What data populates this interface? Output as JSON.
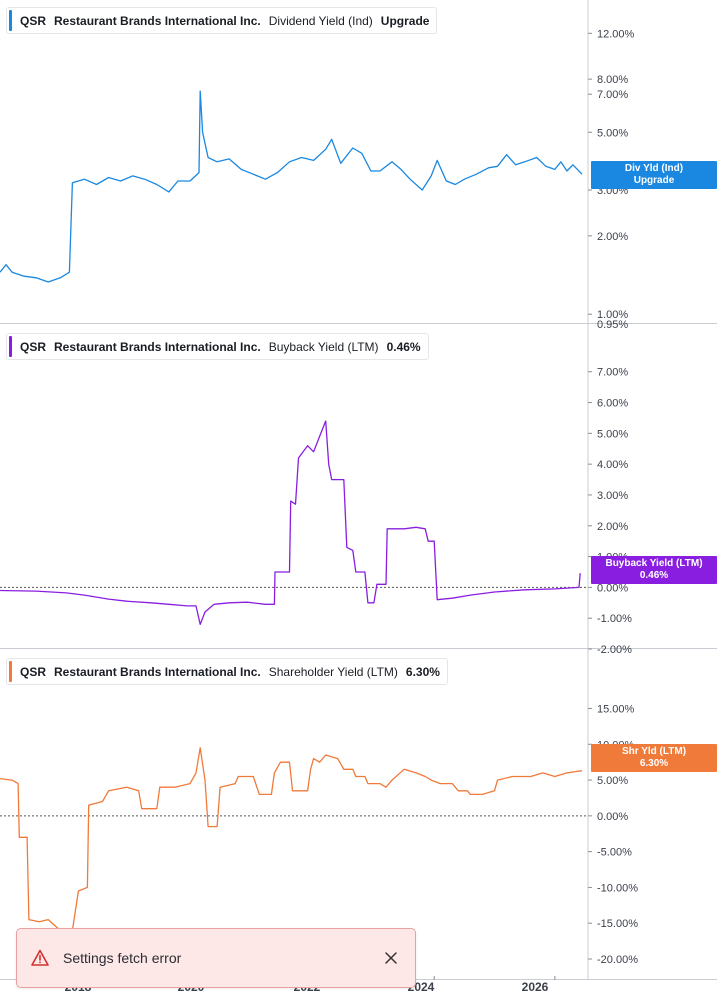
{
  "chart_data": [
    {
      "type": "line",
      "ticker": "QSR",
      "company": "Restaurant Brands International Inc.",
      "metric": "Dividend Yield (Ind)",
      "legend_value": "Upgrade",
      "flag": [
        "Div Yld (Ind)",
        "Upgrade"
      ],
      "color": "#1a88e0",
      "y_scale": "log",
      "ylim": [
        0.95,
        13.5
      ],
      "y_ticks": [
        {
          "v": 12.0,
          "label": "12.00%"
        },
        {
          "v": 8.0,
          "label": "8.00%"
        },
        {
          "v": 7.0,
          "label": "7.00%"
        },
        {
          "v": 5.0,
          "label": "5.00%"
        },
        {
          "v": 3.0,
          "label": "3.00%"
        },
        {
          "v": 2.0,
          "label": "2.00%"
        },
        {
          "v": 1.0,
          "label": "1.00%"
        }
      ],
      "x_domain": [
        2016.8,
        2026.55
      ],
      "series": [
        {
          "values": [
            [
              2016.8,
              1.45
            ],
            [
              2016.9,
              1.55
            ],
            [
              2017.0,
              1.45
            ],
            [
              2017.2,
              1.4
            ],
            [
              2017.4,
              1.38
            ],
            [
              2017.6,
              1.33
            ],
            [
              2017.8,
              1.38
            ],
            [
              2017.95,
              1.45
            ],
            [
              2018.0,
              3.2
            ],
            [
              2018.2,
              3.3
            ],
            [
              2018.4,
              3.15
            ],
            [
              2018.6,
              3.35
            ],
            [
              2018.8,
              3.25
            ],
            [
              2019.0,
              3.4
            ],
            [
              2019.2,
              3.3
            ],
            [
              2019.4,
              3.15
            ],
            [
              2019.6,
              2.95
            ],
            [
              2019.75,
              3.25
            ],
            [
              2019.95,
              3.25
            ],
            [
              2020.1,
              3.5
            ],
            [
              2020.12,
              7.2
            ],
            [
              2020.16,
              5.0
            ],
            [
              2020.25,
              4.0
            ],
            [
              2020.4,
              3.85
            ],
            [
              2020.6,
              3.95
            ],
            [
              2020.8,
              3.6
            ],
            [
              2021.0,
              3.45
            ],
            [
              2021.2,
              3.3
            ],
            [
              2021.4,
              3.5
            ],
            [
              2021.6,
              3.85
            ],
            [
              2021.8,
              4.0
            ],
            [
              2022.0,
              3.9
            ],
            [
              2022.2,
              4.3
            ],
            [
              2022.3,
              4.7
            ],
            [
              2022.45,
              3.8
            ],
            [
              2022.65,
              4.35
            ],
            [
              2022.8,
              4.15
            ],
            [
              2022.95,
              3.55
            ],
            [
              2023.1,
              3.55
            ],
            [
              2023.3,
              3.85
            ],
            [
              2023.45,
              3.6
            ],
            [
              2023.6,
              3.3
            ],
            [
              2023.8,
              3.0
            ],
            [
              2023.95,
              3.4
            ],
            [
              2024.05,
              3.9
            ],
            [
              2024.2,
              3.25
            ],
            [
              2024.35,
              3.15
            ],
            [
              2024.5,
              3.3
            ],
            [
              2024.7,
              3.45
            ],
            [
              2024.9,
              3.65
            ],
            [
              2025.05,
              3.7
            ],
            [
              2025.2,
              4.1
            ],
            [
              2025.35,
              3.75
            ],
            [
              2025.5,
              3.85
            ],
            [
              2025.7,
              4.0
            ],
            [
              2025.85,
              3.7
            ],
            [
              2026.0,
              3.6
            ],
            [
              2026.1,
              3.85
            ],
            [
              2026.2,
              3.55
            ],
            [
              2026.3,
              3.75
            ],
            [
              2026.45,
              3.45
            ]
          ]
        }
      ]
    },
    {
      "type": "line",
      "ticker": "QSR",
      "company": "Restaurant Brands International Inc.",
      "metric": "Buyback Yield (LTM)",
      "legend_value": "0.46%",
      "flag": [
        "Buyback Yield (LTM)",
        "0.46%"
      ],
      "color": "#8a1ee0",
      "ylim": [
        -2.0,
        7.9
      ],
      "y_ticks": [
        {
          "v": 7.0,
          "label": "7.00%"
        },
        {
          "v": 6.0,
          "label": "6.00%"
        },
        {
          "v": 5.0,
          "label": "5.00%"
        },
        {
          "v": 4.0,
          "label": "4.00%"
        },
        {
          "v": 3.0,
          "label": "3.00%"
        },
        {
          "v": 2.0,
          "label": "2.00%"
        },
        {
          "v": 1.0,
          "label": "1.00%"
        },
        {
          "v": 0.0,
          "label": "0.00%"
        },
        {
          "v": -1.0,
          "label": "-1.00%"
        },
        {
          "v": -2.0,
          "label": "-2.00%"
        }
      ],
      "top_label": "0.95%",
      "x_domain": [
        2016.8,
        2026.55
      ],
      "series": [
        {
          "values": [
            [
              2016.8,
              -0.1
            ],
            [
              2017.4,
              -0.12
            ],
            [
              2017.9,
              -0.18
            ],
            [
              2018.2,
              -0.25
            ],
            [
              2018.6,
              -0.38
            ],
            [
              2018.9,
              -0.45
            ],
            [
              2019.3,
              -0.5
            ],
            [
              2019.6,
              -0.55
            ],
            [
              2019.9,
              -0.6
            ],
            [
              2020.05,
              -0.6
            ],
            [
              2020.12,
              -1.2
            ],
            [
              2020.2,
              -0.8
            ],
            [
              2020.35,
              -0.55
            ],
            [
              2020.6,
              -0.5
            ],
            [
              2020.9,
              -0.48
            ],
            [
              2021.2,
              -0.55
            ],
            [
              2021.35,
              -0.55
            ],
            [
              2021.36,
              0.5
            ],
            [
              2021.6,
              0.5
            ],
            [
              2021.62,
              2.8
            ],
            [
              2021.7,
              2.7
            ],
            [
              2021.75,
              4.2
            ],
            [
              2021.9,
              4.6
            ],
            [
              2022.0,
              4.4
            ],
            [
              2022.1,
              4.9
            ],
            [
              2022.2,
              5.4
            ],
            [
              2022.25,
              4.0
            ],
            [
              2022.3,
              3.5
            ],
            [
              2022.5,
              3.5
            ],
            [
              2022.55,
              1.3
            ],
            [
              2022.65,
              1.2
            ],
            [
              2022.7,
              0.5
            ],
            [
              2022.85,
              0.5
            ],
            [
              2022.9,
              -0.5
            ],
            [
              2023.0,
              -0.5
            ],
            [
              2023.05,
              0.1
            ],
            [
              2023.2,
              0.1
            ],
            [
              2023.22,
              1.9
            ],
            [
              2023.5,
              1.9
            ],
            [
              2023.7,
              1.95
            ],
            [
              2023.85,
              1.9
            ],
            [
              2023.9,
              1.5
            ],
            [
              2024.0,
              1.5
            ],
            [
              2024.05,
              -0.4
            ],
            [
              2024.3,
              -0.35
            ],
            [
              2024.6,
              -0.25
            ],
            [
              2025.0,
              -0.15
            ],
            [
              2025.5,
              -0.08
            ],
            [
              2026.0,
              -0.05
            ],
            [
              2026.4,
              0.0
            ],
            [
              2026.42,
              0.46
            ]
          ]
        }
      ]
    },
    {
      "type": "line",
      "ticker": "QSR",
      "company": "Restaurant Brands International Inc.",
      "metric": "Shareholder Yield (LTM)",
      "legend_value": "6.30%",
      "flag": [
        "Shr Yld (LTM)",
        "6.30%"
      ],
      "color": "#f07a3a",
      "ylim": [
        -20.0,
        18.0
      ],
      "y_ticks": [
        {
          "v": 15.0,
          "label": "15.00%"
        },
        {
          "v": 10.0,
          "label": "10.00%"
        },
        {
          "v": 5.0,
          "label": "5.00%"
        },
        {
          "v": 0.0,
          "label": "0.00%"
        },
        {
          "v": -5.0,
          "label": "-5.00%"
        },
        {
          "v": -10.0,
          "label": "-10.00%"
        },
        {
          "v": -15.0,
          "label": "-15.00%"
        },
        {
          "v": -20.0,
          "label": "-20.00%"
        }
      ],
      "x_domain": [
        2016.8,
        2026.55
      ],
      "series": [
        {
          "values": [
            [
              2016.8,
              5.2
            ],
            [
              2017.0,
              5.0
            ],
            [
              2017.1,
              4.5
            ],
            [
              2017.12,
              -3.0
            ],
            [
              2017.25,
              -3.0
            ],
            [
              2017.28,
              -14.5
            ],
            [
              2017.45,
              -14.8
            ],
            [
              2017.6,
              -14.5
            ],
            [
              2017.8,
              -16.0
            ],
            [
              2017.95,
              -18.5
            ],
            [
              2018.0,
              -16.0
            ],
            [
              2018.1,
              -10.5
            ],
            [
              2018.25,
              -10.0
            ],
            [
              2018.27,
              1.5
            ],
            [
              2018.5,
              2.0
            ],
            [
              2018.6,
              3.5
            ],
            [
              2018.9,
              4.0
            ],
            [
              2019.1,
              3.5
            ],
            [
              2019.15,
              1.0
            ],
            [
              2019.4,
              1.0
            ],
            [
              2019.45,
              4.0
            ],
            [
              2019.7,
              4.0
            ],
            [
              2019.95,
              4.5
            ],
            [
              2020.05,
              6.0
            ],
            [
              2020.12,
              9.5
            ],
            [
              2020.2,
              5.0
            ],
            [
              2020.25,
              -1.5
            ],
            [
              2020.4,
              -1.5
            ],
            [
              2020.45,
              4.0
            ],
            [
              2020.7,
              4.5
            ],
            [
              2020.75,
              5.5
            ],
            [
              2021.0,
              5.5
            ],
            [
              2021.1,
              3.0
            ],
            [
              2021.3,
              3.0
            ],
            [
              2021.35,
              6.0
            ],
            [
              2021.45,
              7.5
            ],
            [
              2021.6,
              7.5
            ],
            [
              2021.65,
              3.5
            ],
            [
              2021.9,
              3.5
            ],
            [
              2021.95,
              6.5
            ],
            [
              2022.0,
              8.0
            ],
            [
              2022.1,
              7.5
            ],
            [
              2022.2,
              8.5
            ],
            [
              2022.4,
              8.0
            ],
            [
              2022.5,
              6.5
            ],
            [
              2022.65,
              6.5
            ],
            [
              2022.7,
              5.5
            ],
            [
              2022.85,
              5.5
            ],
            [
              2022.9,
              4.5
            ],
            [
              2023.1,
              4.5
            ],
            [
              2023.2,
              4.0
            ],
            [
              2023.3,
              5.0
            ],
            [
              2023.5,
              6.5
            ],
            [
              2023.7,
              6.0
            ],
            [
              2023.85,
              5.5
            ],
            [
              2023.95,
              5.0
            ],
            [
              2024.1,
              4.5
            ],
            [
              2024.3,
              4.5
            ],
            [
              2024.4,
              3.5
            ],
            [
              2024.55,
              3.5
            ],
            [
              2024.6,
              3.0
            ],
            [
              2024.8,
              3.0
            ],
            [
              2025.0,
              3.5
            ],
            [
              2025.05,
              5.0
            ],
            [
              2025.3,
              5.5
            ],
            [
              2025.6,
              5.5
            ],
            [
              2025.8,
              6.0
            ],
            [
              2026.0,
              5.5
            ],
            [
              2026.2,
              6.0
            ],
            [
              2026.45,
              6.3
            ]
          ]
        }
      ]
    }
  ],
  "x_axis": {
    "domain": [
      2016.8,
      2026.55
    ],
    "ticks": [
      {
        "v": 2018,
        "label": "2018"
      },
      {
        "v": 2020,
        "label": "2020"
      },
      {
        "v": 2022,
        "label": "2022"
      },
      {
        "v": 2024,
        "label": "2024"
      },
      {
        "v": 2026,
        "label": "2026"
      }
    ]
  },
  "toast": {
    "message": "Settings fetch error",
    "icon": "warning-icon",
    "close_icon": "close-icon",
    "bg": "#fde7e7",
    "accent": "#d33030"
  }
}
